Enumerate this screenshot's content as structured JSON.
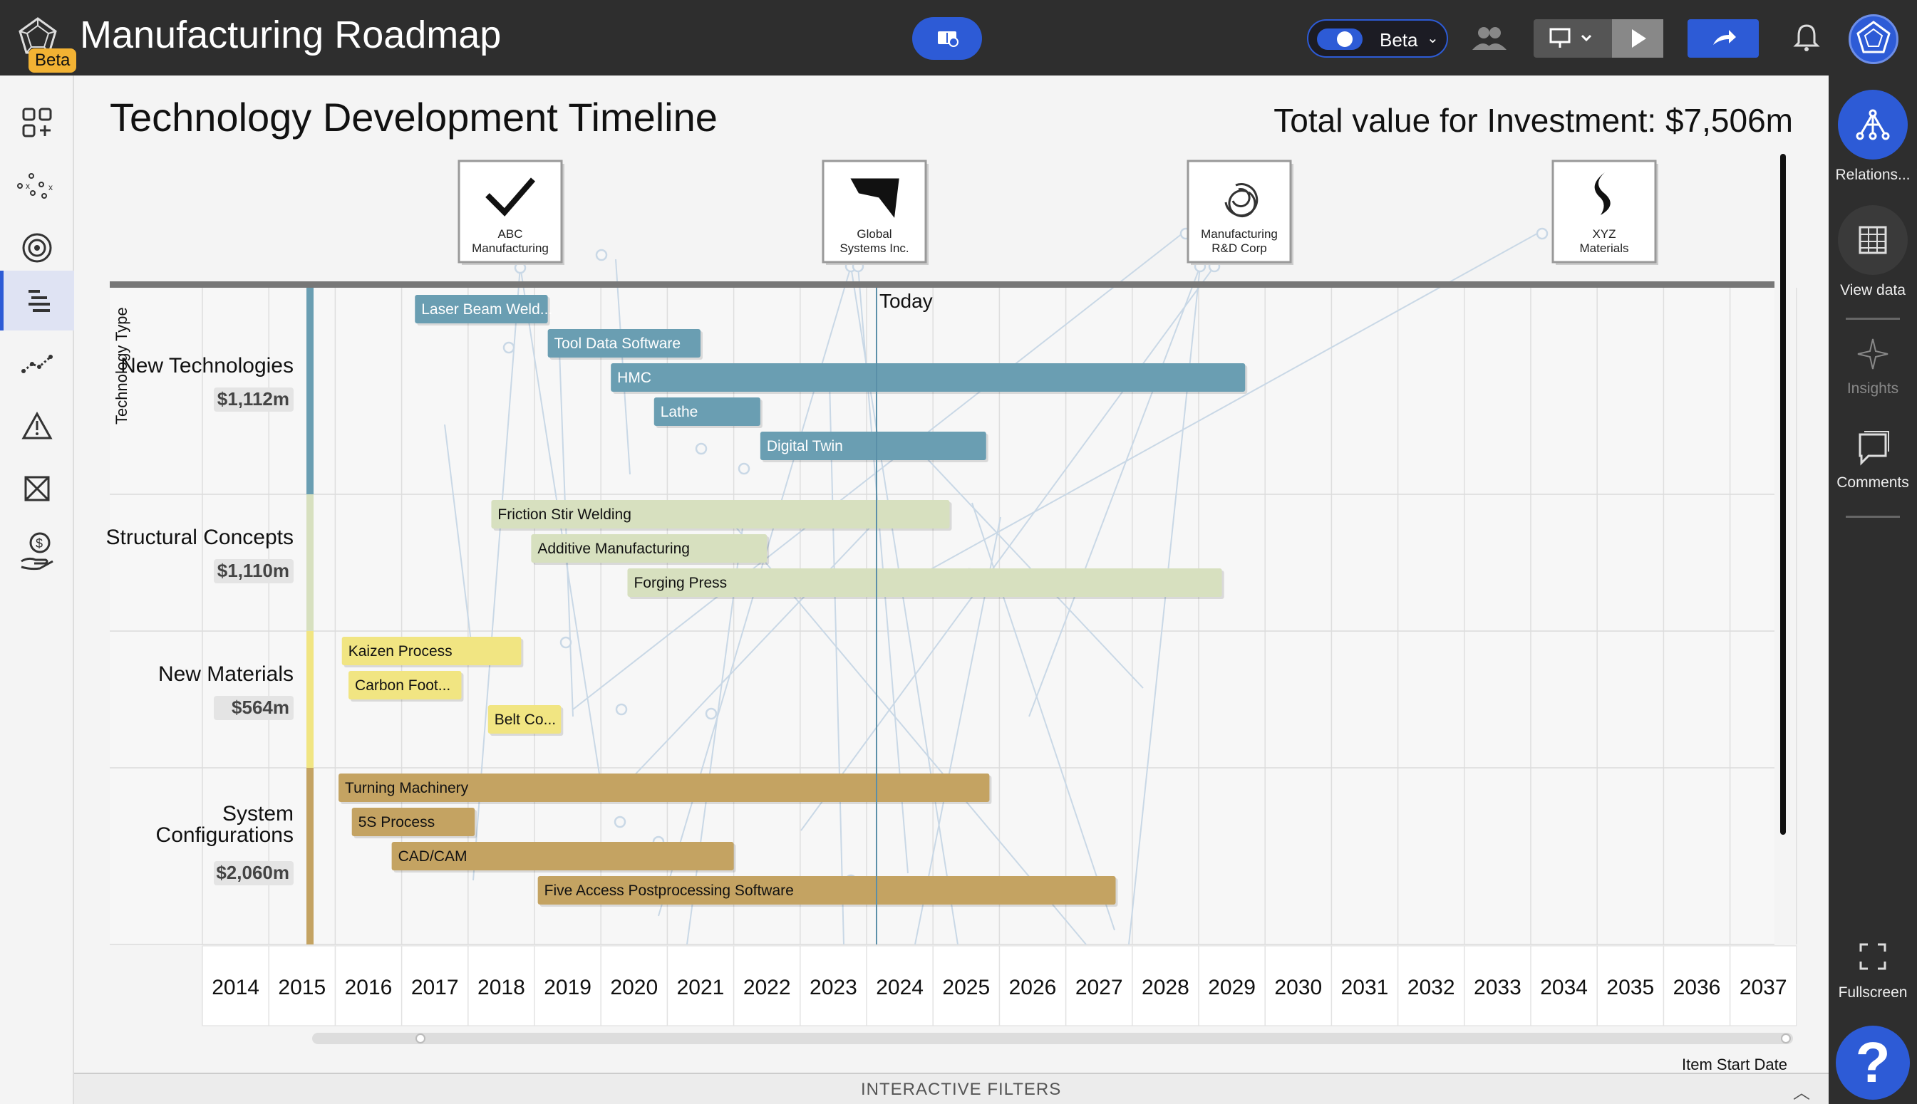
{
  "app": {
    "title": "Manufacturing Roadmap",
    "badge": "Beta"
  },
  "topbar": {
    "beta_toggle_label": "Beta",
    "icons": [
      "book-icon",
      "users-icon",
      "present-icon",
      "chevron-down-icon",
      "play-icon",
      "share-icon",
      "bell-icon",
      "avatar-icon"
    ]
  },
  "leftnav": {
    "items": [
      {
        "icon": "add-widget-icon"
      },
      {
        "icon": "scatter-icon"
      },
      {
        "icon": "target-icon"
      },
      {
        "icon": "roadmap-icon",
        "active": true
      },
      {
        "icon": "trend-line-icon"
      },
      {
        "icon": "warning-icon"
      },
      {
        "icon": "matrix-icon"
      },
      {
        "icon": "money-hand-icon"
      }
    ]
  },
  "rightpanel": {
    "relations_label": "Relations...",
    "view_data_label": "View data",
    "insights_label": "Insights",
    "comments_label": "Comments",
    "fullscreen_label": "Fullscreen",
    "help_label": "?"
  },
  "main": {
    "title": "Technology Development Timeline",
    "total_value": "Total value for Investment: $7,506m",
    "today_label": "Today",
    "row_axis_label": "Technology Type",
    "x_axis_caption": "Item Start Date",
    "filters_label": "INTERACTIVE FILTERS"
  },
  "companies": [
    {
      "name_lines": [
        "ABC",
        "Manufacturing"
      ],
      "logo": "checkmark-logo-icon"
    },
    {
      "name_lines": [
        "Global",
        "Systems Inc."
      ],
      "logo": "global-systems-logo-icon"
    },
    {
      "name_lines": [
        "Manufacturing",
        "R&D Corp"
      ],
      "logo": "rd-corp-logo-icon"
    },
    {
      "name_lines": [
        "XYZ",
        "Materials"
      ],
      "logo": "flame-logo-icon"
    }
  ],
  "colors": {
    "accent": "#2d5bd6",
    "new_technologies": "#6a9eb2",
    "structural_concepts": "#d7e0bf",
    "new_materials": "#f1e582",
    "system_configurations": "#c4a362"
  },
  "chart_data": {
    "type": "gantt",
    "x_ticks": [
      2014,
      2015,
      2016,
      2017,
      2018,
      2019,
      2020,
      2021,
      2022,
      2023,
      2024,
      2025,
      2026,
      2027,
      2028,
      2029,
      2030,
      2031,
      2032,
      2033,
      2034,
      2035,
      2036,
      2037
    ],
    "today": 2024.15,
    "groups": [
      {
        "name": "New Technologies",
        "total": "$1,112m",
        "color_key": "new_technologies",
        "items": [
          {
            "label": "Laser Beam Weld...",
            "start": 2017.2,
            "end": 2019.2
          },
          {
            "label": "Tool Data Software",
            "start": 2019.2,
            "end": 2021.5
          },
          {
            "label": "HMC",
            "start": 2020.15,
            "end": 2029.7
          },
          {
            "label": "Lathe",
            "start": 2020.8,
            "end": 2022.4
          },
          {
            "label": "Digital Twin",
            "start": 2022.4,
            "end": 2025.8
          }
        ]
      },
      {
        "name": "Structural Concepts",
        "total": "$1,110m",
        "color_key": "structural_concepts",
        "items": [
          {
            "label": "Friction Stir Welding",
            "start": 2018.35,
            "end": 2025.25
          },
          {
            "label": "Additive Manufacturing",
            "start": 2018.95,
            "end": 2022.5
          },
          {
            "label": "Forging Press",
            "start": 2020.4,
            "end": 2029.35
          }
        ]
      },
      {
        "name": "New Materials",
        "total": "$564m",
        "color_key": "new_materials",
        "items": [
          {
            "label": "Kaizen Process",
            "start": 2016.1,
            "end": 2018.8
          },
          {
            "label": "Carbon Foot...",
            "start": 2016.2,
            "end": 2017.9
          },
          {
            "label": "Belt Co...",
            "start": 2018.3,
            "end": 2019.4
          }
        ]
      },
      {
        "name_lines": [
          "System",
          "Configurations"
        ],
        "total": "$2,060m",
        "color_key": "system_configurations",
        "items": [
          {
            "label": "Turning Machinery",
            "start": 2016.05,
            "end": 2025.85
          },
          {
            "label": "5S Process",
            "start": 2016.25,
            "end": 2018.1
          },
          {
            "label": "CAD/CAM",
            "start": 2016.85,
            "end": 2022.0
          },
          {
            "label": "Five Access Postprocessing Software",
            "start": 2019.05,
            "end": 2027.75
          }
        ]
      }
    ]
  }
}
